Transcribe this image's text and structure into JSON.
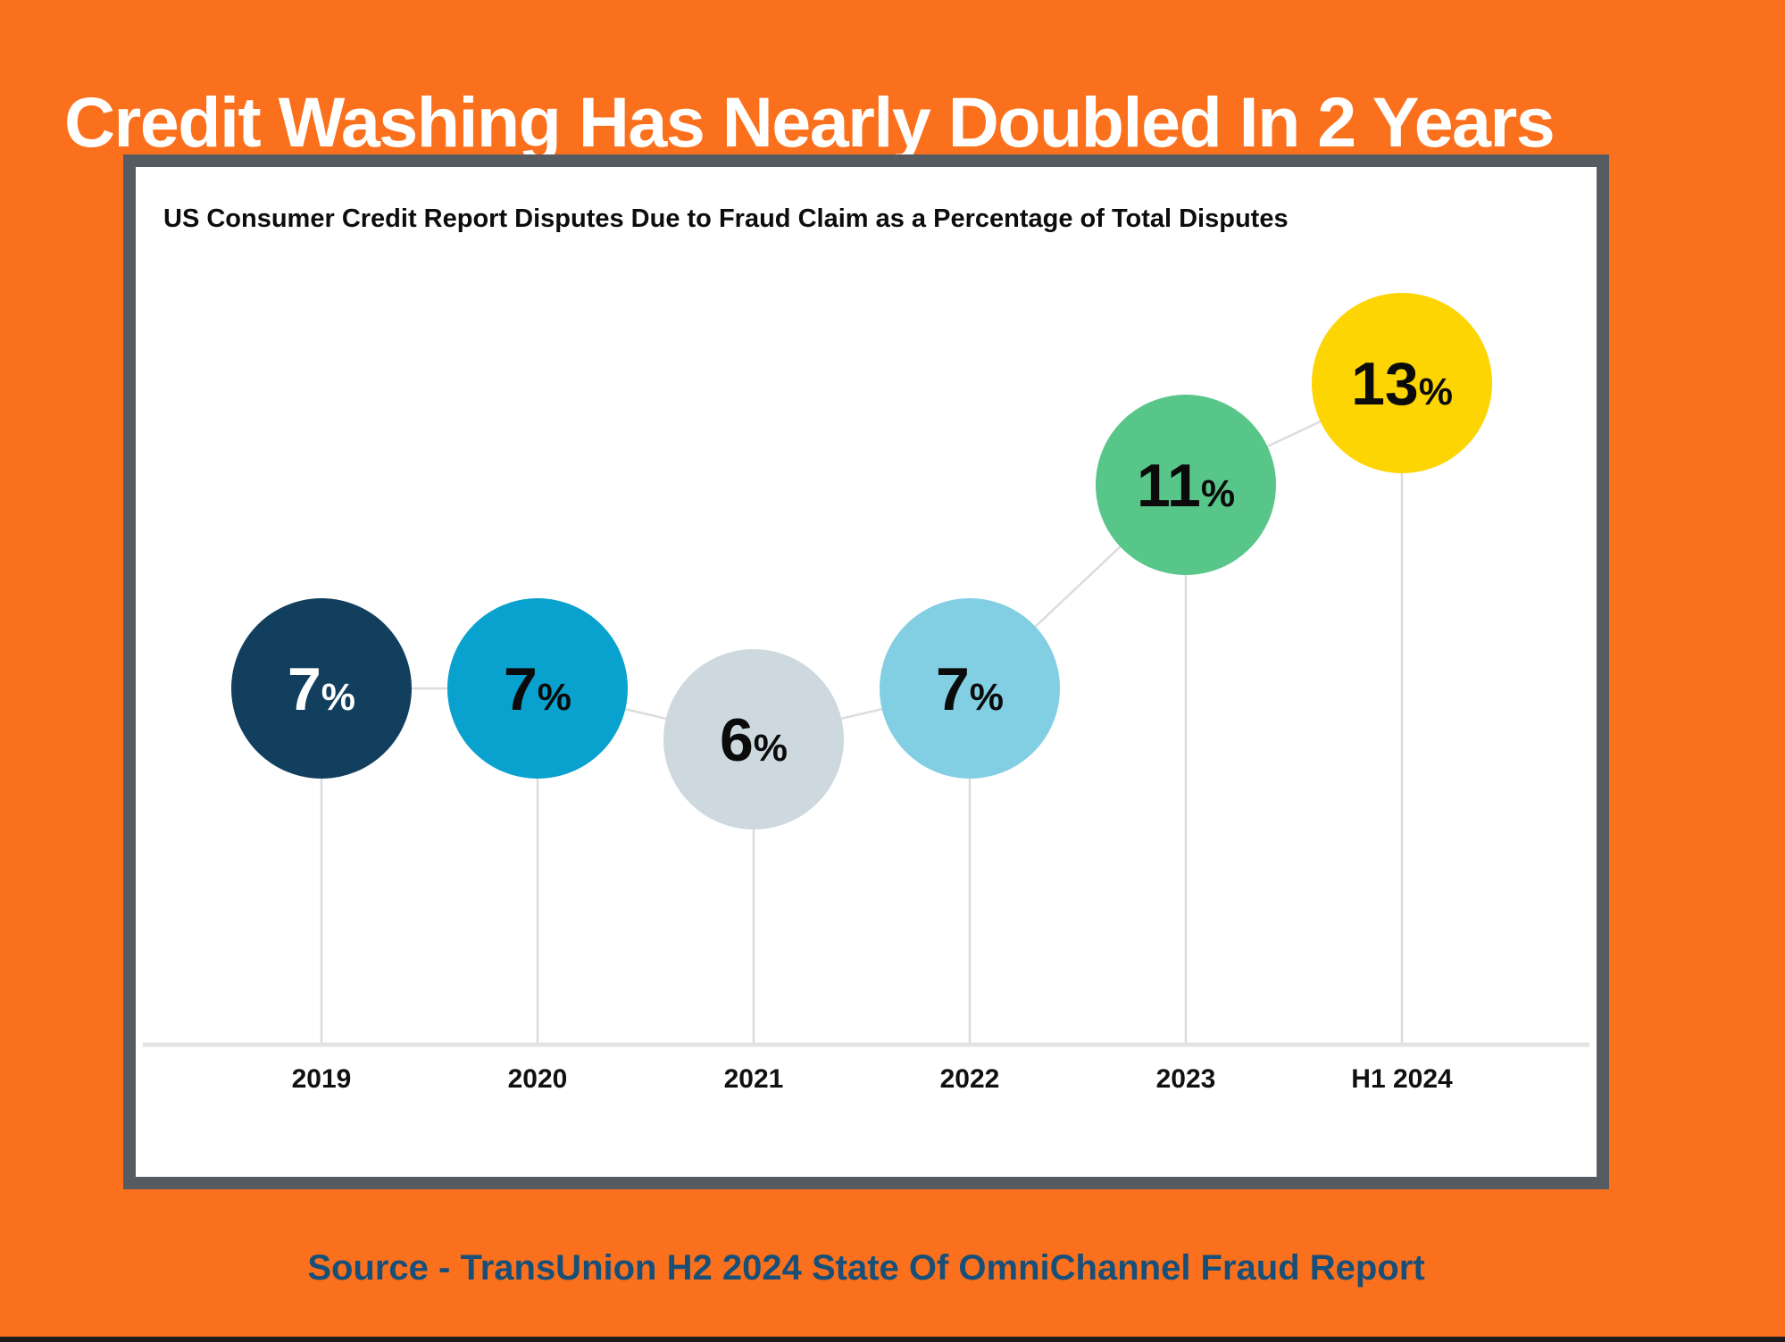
{
  "title": "Credit Washing Has Nearly Doubled In 2 Years",
  "source": "Source - TransUnion H2 2024 State Of OmniChannel Fraud Report",
  "colors": {
    "background": "#fb701c",
    "title_text": "#ffffff",
    "panel_border": "#565b62",
    "panel_background": "#ffffff",
    "subtitle_text": "#0d0d0d",
    "source_text": "#174f78",
    "connector_line": "#dcdcdc",
    "stem_line": "#dcdcdc",
    "axis_line": "#e3e3e3",
    "axis_label_text": "#111111",
    "bottom_strip": "#1d1d1d"
  },
  "chart_data": {
    "type": "line",
    "title": "US Consumer Credit Report Disputes Due to Fraud Claim as a Percentage of Total Disputes",
    "categories": [
      "2019",
      "2020",
      "2021",
      "2022",
      "2023",
      "H1 2024"
    ],
    "values": [
      7,
      7,
      6,
      7,
      11,
      13
    ],
    "unit": "%",
    "ylabel": "",
    "xlabel": "",
    "ylim": [
      0,
      17
    ],
    "grid": false,
    "legend": "none",
    "marker_style": "large-filled-circles-with-stems-to-axis",
    "points": [
      {
        "label": "2019",
        "value": 7,
        "display": "7%",
        "circle_color": "#123f5e",
        "text_color": "#ffffff"
      },
      {
        "label": "2020",
        "value": 7,
        "display": "7%",
        "circle_color": "#09a2ce",
        "text_color": "#0b0b0b"
      },
      {
        "label": "2021",
        "value": 6,
        "display": "6%",
        "circle_color": "#ced9df",
        "text_color": "#0b0b0b"
      },
      {
        "label": "2022",
        "value": 7,
        "display": "7%",
        "circle_color": "#82cfe4",
        "text_color": "#0b0b0b"
      },
      {
        "label": "2023",
        "value": 11,
        "display": "11%",
        "circle_color": "#57c688",
        "text_color": "#0b0b0b"
      },
      {
        "label": "H1 2024",
        "value": 13,
        "display": "13%",
        "circle_color": "#fdd503",
        "text_color": "#0b0b0b"
      }
    ]
  }
}
